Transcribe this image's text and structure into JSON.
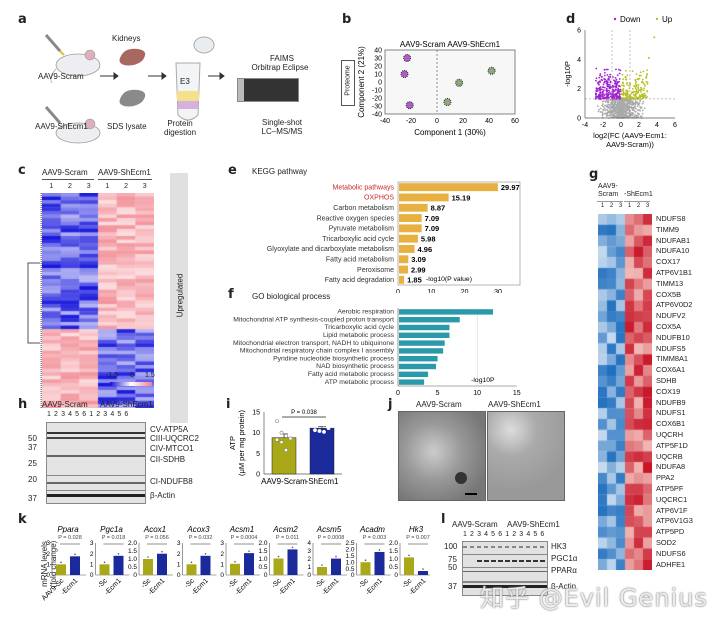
{
  "panels": {
    "a": {
      "label": "a",
      "groups": [
        "AAV9-Scram",
        "AAV9-ShEcm1"
      ],
      "kidneys_label": "Kidneys",
      "lysate_label": "SDS lysate",
      "tube_label": "E3",
      "digestion_label": "Protein\ndigestion",
      "instrument_label_1": "FAIMS",
      "instrument_label_2": "Orbitrap Eclipse",
      "method_label_1": "Single-shot",
      "method_label_2": "LC–MS/MS"
    },
    "b": {
      "label": "b",
      "side_label": "Proteome",
      "legend": "AAV9-Scram AAV9-ShEcm1"
    },
    "c": {
      "label": "c",
      "group1": "AAV9-Scram",
      "group2": "AAV9-ShEcm1",
      "replicates": [
        "1",
        "2",
        "3",
        "1",
        "2",
        "3"
      ],
      "side_label": "Upregulated",
      "scale_ticks": [
        "-1.5",
        "0",
        "1.5"
      ]
    },
    "e": {
      "label": "e",
      "title": "KEGG pathway"
    },
    "f": {
      "label": "f",
      "title": "GO biological process"
    },
    "g": {
      "label": "g",
      "group1": "AAV9-\nScram",
      "group2": "-ShEcm1",
      "replicates": [
        "1",
        "2",
        "3",
        "1",
        "2",
        "3"
      ]
    },
    "h": {
      "label": "h",
      "group1": "AAV9-Scram",
      "group2": "AAV9-ShEcm1",
      "lanes": "1 2 3 4 5 6 1 2 3 4 5 6",
      "mw_markers": [
        "50",
        "37",
        "25",
        "20",
        "37"
      ],
      "bands": [
        "CV-ATP5A",
        "CIII-UQCRC2",
        "CIV-MTCO1",
        "CII-SDHB",
        "CI-NDUFB8",
        "β-Actin"
      ]
    },
    "i": {
      "label": "i"
    },
    "j": {
      "label": "j",
      "titles": [
        "AAV9-Scram",
        "AAV9-ShEcm1"
      ]
    },
    "k": {
      "label": "k",
      "ylabel": "mRNA levels\n(fold change)"
    },
    "l": {
      "label": "l",
      "group1": "AAV9-Scram",
      "group2": "AAV9-ShEcm1",
      "lanes": "1 2 3 4 5 6 1 2 3 4 5 6",
      "mw_markers": [
        "100",
        "75",
        "50",
        "37"
      ],
      "bands": [
        "HK3",
        "PGC1α",
        "PPARα",
        "β-Actin"
      ]
    }
  },
  "watermark": "知乎 @Evil Genius",
  "chart_data": [
    {
      "id": "b",
      "type": "scatter",
      "title": "",
      "xlabel": "Component 1 (30%)",
      "ylabel": "Component 2 (21%)",
      "xlim": [
        -40,
        60
      ],
      "ylim": [
        -40,
        40
      ],
      "xticks": [
        -40,
        -20,
        0,
        20,
        40,
        60
      ],
      "yticks": [
        -40,
        -30,
        -20,
        -10,
        0,
        10,
        20,
        30,
        40
      ],
      "series": [
        {
          "name": "AAV9-Scram",
          "color": "#b05cc8",
          "points": [
            [
              -23,
              30
            ],
            [
              -25,
              10
            ],
            [
              -21,
              -29
            ]
          ]
        },
        {
          "name": "AAV9-ShEcm1",
          "color": "#8fa67a",
          "points": [
            [
              42,
              14
            ],
            [
              17,
              -1
            ],
            [
              8,
              -25
            ]
          ]
        }
      ]
    },
    {
      "id": "d",
      "type": "scatter",
      "title": "",
      "legend": [
        "Down",
        "Up"
      ],
      "xlabel": "log2(FC (AAV9-Ecm1: AAV9-Scram))",
      "ylabel": "-log10P",
      "xlim": [
        -4,
        6
      ],
      "ylim": [
        0,
        6
      ],
      "xticks": [
        -4,
        -2,
        0,
        2,
        4,
        6
      ],
      "yticks": [
        0,
        2,
        4,
        6
      ],
      "colors": {
        "down": "#a020d0",
        "up": "#b8c020",
        "ns": "#aaaaaa"
      },
      "thresholds": {
        "fc": [
          -1,
          1
        ],
        "p": 1.3
      }
    },
    {
      "id": "e",
      "type": "bar",
      "orientation": "horizontal",
      "title": "KEGG pathway",
      "xlabel": "-log10(P value)",
      "xlim": [
        0,
        30
      ],
      "xticks": [
        0,
        10,
        20,
        30
      ],
      "color": "#e8b040",
      "categories": [
        "Metabolic pathways",
        "OXPHOS",
        "Carbon metabolism",
        "Reactive oxygen species",
        "Pyruvate metabolism",
        "Tricarboxylic acid cycle",
        "Glyoxylate and dicarboxylate metabolism",
        "Fatty acid metabolism",
        "Peroxisome",
        "Fatty acid degradation"
      ],
      "highlight": [
        "Metabolic pathways",
        "OXPHOS"
      ],
      "values": [
        29.97,
        15.19,
        8.87,
        7.09,
        7.09,
        5.98,
        4.96,
        3.09,
        2.99,
        1.85
      ]
    },
    {
      "id": "f",
      "type": "bar",
      "orientation": "horizontal",
      "title": "GO biological process",
      "xlabel": "-log10P",
      "xlim": [
        0,
        12
      ],
      "xticks": [
        0,
        5,
        10,
        15
      ],
      "color": "#2a9aaa",
      "categories": [
        "Aerobic respiration",
        "Mitochondrial ATP synthesis-coupled proton transport",
        "Tricarboxylic acid cycle",
        "Lipid metabolic process",
        "Mitochondrial electron transport, NADH to ubiquinone",
        "Mitochondrial respiratory chain complex I assembly",
        "Pyridine nucleotide biosynthetic process",
        "NAD biosynthetic process",
        "Fatty acid metabolic process",
        "ATP metabolic process"
      ],
      "values": [
        12.0,
        7.8,
        6.5,
        6.5,
        5.9,
        5.7,
        5.0,
        4.8,
        3.8,
        3.3
      ]
    },
    {
      "id": "g",
      "type": "heatmap",
      "rows": [
        "NDUFS8",
        "TIMM9",
        "NDUFAB1",
        "NDUFA10",
        "COX17",
        "ATP6V1B1",
        "TIMM13",
        "COX5B",
        "ATP6V0D2",
        "NDUFV2",
        "COX5A",
        "NDUFB10",
        "NDUFS5",
        "TIMM8A1",
        "COX6A1",
        "SDHB",
        "COX19",
        "NDUFB9",
        "NDUFS1",
        "COX6B1",
        "UQCRH",
        "ATP5F1D",
        "UQCRB",
        "NDUFA8",
        "PPA2",
        "ATP5PF",
        "UQCRC1",
        "ATP6V1F",
        "ATP6V1G3",
        "ATP5PD",
        "SOD2",
        "NDUFS6",
        "ADHFE1"
      ],
      "columns": [
        "Scram 1",
        "Scram 2",
        "Scram 3",
        "ShEcm1 1",
        "ShEcm1 2",
        "ShEcm1 3"
      ]
    },
    {
      "id": "i",
      "type": "bar",
      "ylabel": "ATP\n(μM per mg protein)",
      "ylim": [
        0,
        15
      ],
      "yticks": [
        0,
        5,
        10,
        15
      ],
      "categories": [
        "AAV9-Scram",
        "-ShEcm1"
      ],
      "values": [
        8.8,
        11.1
      ],
      "errors": [
        0.9,
        0.4
      ],
      "colors": [
        "#a8a818",
        "#1a2a9a"
      ],
      "points": [
        [
          12.8,
          10.0,
          9.2,
          8.6,
          8.3,
          7.7,
          5.8
        ],
        [
          12.3,
          12.2,
          12.0,
          11.1,
          10.6,
          10.4,
          10.2
        ]
      ],
      "annotation": "P = 0.038"
    },
    {
      "id": "k",
      "type": "bar",
      "ylabel": "mRNA levels (fold change)",
      "categories_first": [
        "AAV9-Sc",
        "-Ecm1"
      ],
      "categories": [
        "-Sc",
        "-Ecm1"
      ],
      "colors": [
        "#a8a818",
        "#1a2a9a"
      ],
      "subplots": [
        {
          "gene": "Ppara",
          "p": "P = 0.028",
          "ylim": [
            0,
            3
          ],
          "yticks": [
            "0",
            "1",
            "2",
            "3"
          ],
          "values": [
            1.0,
            1.75
          ]
        },
        {
          "gene": "Pgc1a",
          "p": "P = 0.018",
          "ylim": [
            0,
            3
          ],
          "yticks": [
            "0",
            "1",
            "2",
            "3"
          ],
          "values": [
            1.0,
            1.8
          ]
        },
        {
          "gene": "Acox1",
          "p": "P = 0.056",
          "ylim": [
            0,
            2
          ],
          "yticks": [
            "0",
            "0.5",
            "1.0",
            "1.5",
            "2.0"
          ],
          "values": [
            1.0,
            1.33
          ]
        },
        {
          "gene": "Acox3",
          "p": "P = 0.032",
          "ylim": [
            0,
            3
          ],
          "yticks": [
            "0",
            "1",
            "2",
            "3"
          ],
          "values": [
            1.0,
            1.8
          ]
        },
        {
          "gene": "Acsm1",
          "p": "P = 0.0004",
          "ylim": [
            0,
            3
          ],
          "yticks": [
            "0",
            "1",
            "2",
            "3"
          ],
          "values": [
            1.05,
            2.05
          ]
        },
        {
          "gene": "Acsm2",
          "p": "P = 0.011",
          "ylim": [
            0,
            2
          ],
          "yticks": [
            "0",
            "0.5",
            "1.0",
            "1.5",
            "2.0"
          ],
          "values": [
            1.03,
            1.6
          ]
        },
        {
          "gene": "Acsm5",
          "p": "P = 0.0008",
          "ylim": [
            0,
            4
          ],
          "yticks": [
            "0",
            "1",
            "2",
            "3",
            "4"
          ],
          "values": [
            1.0,
            2.05
          ]
        },
        {
          "gene": "Acadm",
          "p": "P = 0.003",
          "ylim": [
            0,
            2.5
          ],
          "yticks": [
            "0",
            "0.5",
            "1.0",
            "1.5",
            "2.0",
            "2.5"
          ],
          "values": [
            1.0,
            1.8
          ]
        },
        {
          "gene": "Hk3",
          "p": "P = 0.007",
          "ylim": [
            0,
            2
          ],
          "yticks": [
            "0",
            "0.5",
            "1.0",
            "1.5",
            "2.0"
          ],
          "values": [
            1.1,
            0.25
          ]
        }
      ]
    }
  ]
}
